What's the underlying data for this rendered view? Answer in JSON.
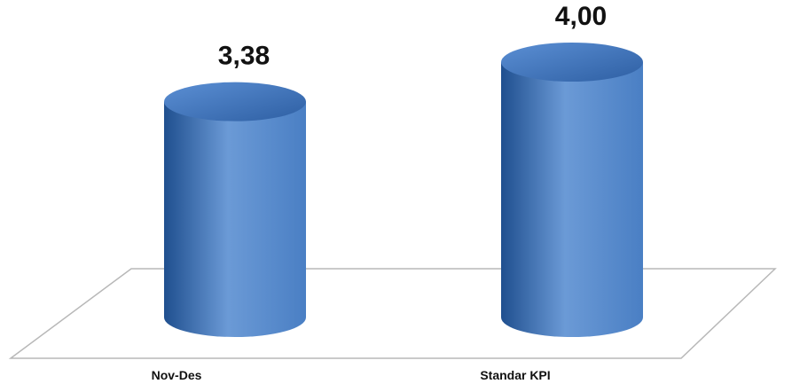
{
  "chart_data": {
    "type": "bar",
    "style": "3d-cylinder",
    "categories": [
      "Nov-Des",
      "Standar KPI"
    ],
    "values": [
      3.38,
      4.0
    ],
    "data_labels": [
      "3,38",
      "4,00"
    ],
    "title": "",
    "xlabel": "",
    "ylabel": "",
    "grid": false,
    "legend": "none",
    "colors": {
      "bar_dark": "#1f4f8f",
      "bar_mid": "#4a7fc4",
      "bar_light": "#6b9ad6",
      "top_light": "#5b8fd4",
      "top_dark": "#2e5fa3",
      "floor_stroke": "#b8b8b8"
    }
  }
}
